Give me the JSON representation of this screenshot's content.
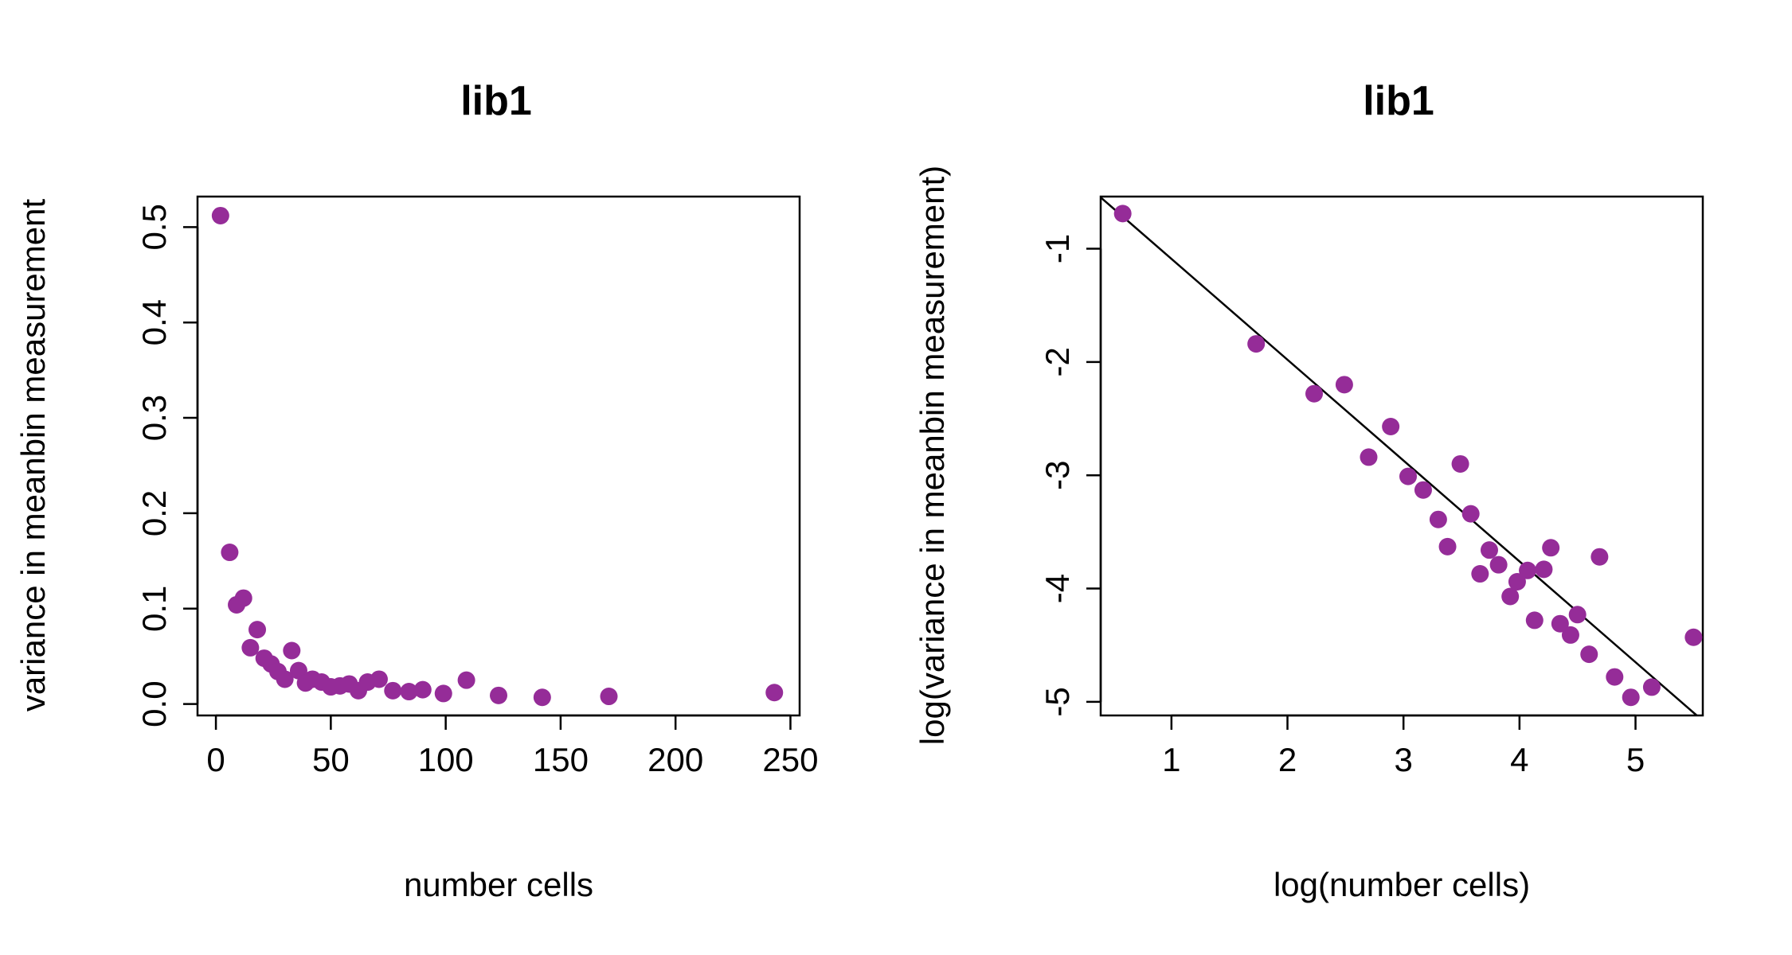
{
  "colors": {
    "points": "#952C98",
    "fit_line": "#000000"
  },
  "chart_data": [
    {
      "type": "scatter",
      "title": "lib1",
      "xlabel": "number cells",
      "ylabel": "variance in meanbin measurement",
      "xlim": [
        -8,
        254
      ],
      "ylim": [
        -0.012,
        0.532
      ],
      "xticks": [
        0,
        50,
        100,
        150,
        200,
        250
      ],
      "xtick_labels": [
        "0",
        "50",
        "100",
        "150",
        "200",
        "250"
      ],
      "yticks": [
        0.0,
        0.1,
        0.2,
        0.3,
        0.4,
        0.5
      ],
      "ytick_labels": [
        "0.0",
        "0.1",
        "0.2",
        "0.3",
        "0.4",
        "0.5"
      ],
      "grid": false,
      "series": [
        {
          "x": [
            2,
            6,
            9,
            12,
            15,
            18,
            21,
            24,
            27,
            30,
            33,
            36,
            39,
            42,
            46,
            50,
            54,
            58,
            62,
            66,
            71,
            77,
            84,
            90,
            99,
            109,
            123,
            142,
            171,
            243
          ],
          "y": [
            0.512,
            0.159,
            0.104,
            0.111,
            0.059,
            0.078,
            0.048,
            0.042,
            0.034,
            0.026,
            0.056,
            0.035,
            0.022,
            0.026,
            0.023,
            0.018,
            0.019,
            0.021,
            0.014,
            0.023,
            0.026,
            0.014,
            0.013,
            0.015,
            0.011,
            0.025,
            0.009,
            0.007,
            0.008,
            0.012
          ]
        }
      ]
    },
    {
      "type": "scatter",
      "title": "lib1",
      "xlabel": "log(number cells)",
      "ylabel": "log(variance in meanbin measurement)",
      "xlim": [
        0.39,
        5.58
      ],
      "ylim": [
        -5.12,
        -0.54
      ],
      "xticks": [
        1,
        2,
        3,
        4,
        5
      ],
      "xtick_labels": [
        "1",
        "2",
        "3",
        "4",
        "5"
      ],
      "yticks": [
        -5,
        -4,
        -3,
        -2,
        -1
      ],
      "ytick_labels": [
        "-5",
        "-4",
        "-3",
        "-2",
        "-1"
      ],
      "grid": false,
      "fit_line": {
        "intercept": -0.2,
        "slope": -0.89
      },
      "series": [
        {
          "x": [
            0.58,
            1.73,
            2.23,
            2.49,
            2.7,
            2.89,
            3.04,
            3.17,
            3.3,
            3.38,
            3.49,
            3.58,
            3.66,
            3.74,
            3.82,
            3.92,
            3.98,
            4.07,
            4.13,
            4.21,
            4.27,
            4.35,
            4.44,
            4.5,
            4.6,
            4.69,
            4.82,
            4.96,
            5.14,
            5.5
          ],
          "y": [
            -0.69,
            -1.84,
            -2.28,
            -2.2,
            -2.84,
            -2.57,
            -3.01,
            -3.13,
            -3.39,
            -3.63,
            -2.9,
            -3.34,
            -3.87,
            -3.66,
            -3.79,
            -4.07,
            -3.94,
            -3.84,
            -4.28,
            -3.83,
            -3.64,
            -4.31,
            -4.41,
            -4.23,
            -4.58,
            -3.72,
            -4.78,
            -4.96,
            -4.87,
            -4.43
          ]
        }
      ]
    }
  ]
}
